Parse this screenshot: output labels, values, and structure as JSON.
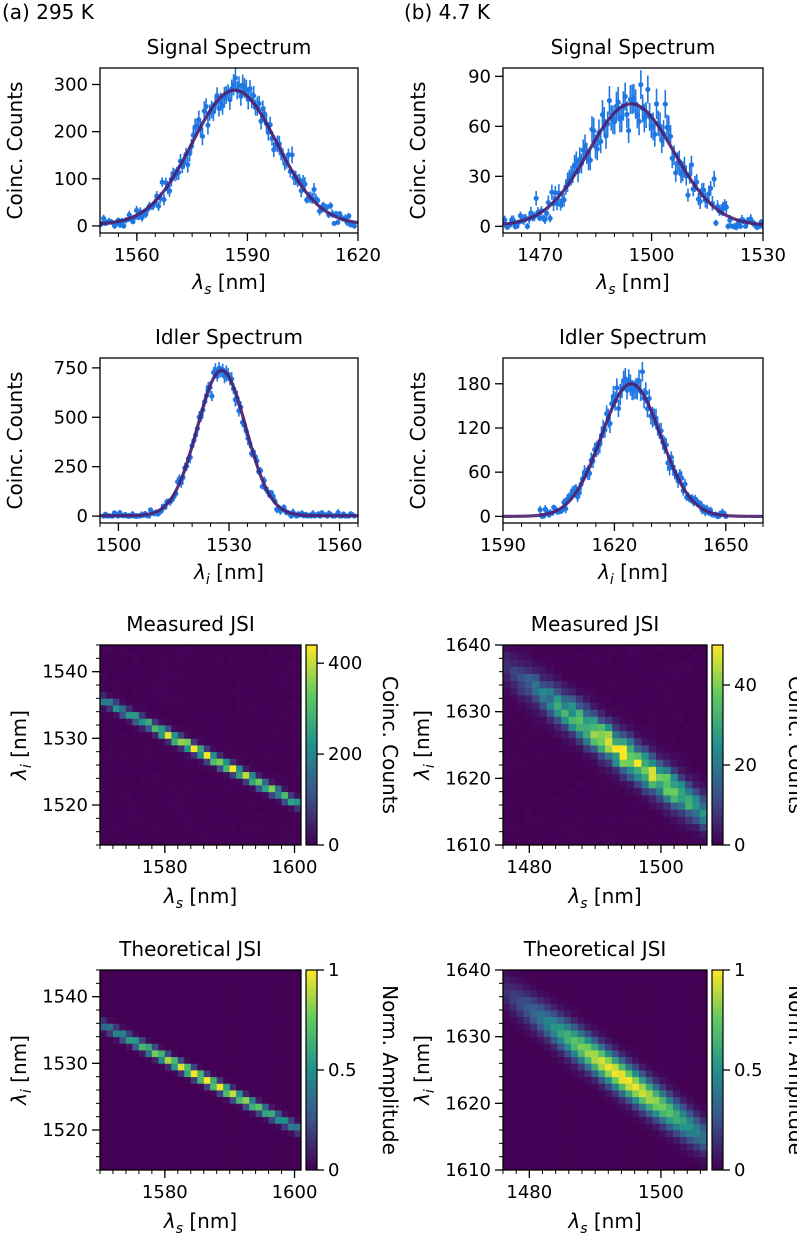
{
  "panel_labels": {
    "a": "(a) 295 K",
    "b": "(b) 4.7 K"
  },
  "colorbar_labels": {
    "counts": "Coinc. Counts",
    "amplitude": "Norm. Amplitude"
  },
  "colors": {
    "data": "#1f77e4",
    "fit": "#4b1f6f"
  },
  "chart_data": [
    {
      "id": "sig_a",
      "type": "line",
      "title": "Signal Spectrum",
      "xlabel_sym": "λ",
      "xlabel_sub": "s",
      "xlabel_unit": "[nm]",
      "ylabel": "Coinc. Counts",
      "xlim": [
        1550,
        1620
      ],
      "ylim": [
        -15,
        335
      ],
      "xticks": [
        1560,
        1590,
        1620
      ],
      "yticks": [
        0,
        100,
        200,
        300
      ],
      "fit": {
        "model": "gaussian",
        "amplitude": 285,
        "center": 1586.5,
        "sigma": 11.5,
        "offset": 3
      },
      "data_range": [
        1550,
        1619
      ],
      "n_points": 140,
      "noise_frac": 0.06
    },
    {
      "id": "sig_b",
      "type": "line",
      "title": "Signal Spectrum",
      "xlabel_sym": "λ",
      "xlabel_sub": "s",
      "xlabel_unit": "[nm]",
      "ylabel": "Coinc. Counts",
      "xlim": [
        1460,
        1530
      ],
      "ylim": [
        -4,
        95
      ],
      "xticks": [
        1470,
        1500,
        1530
      ],
      "yticks": [
        0,
        30,
        60,
        90
      ],
      "fit": {
        "model": "gaussian",
        "amplitude": 73,
        "center": 1494.5,
        "sigma": 11.5,
        "offset": 0.5
      },
      "data_range": [
        1460,
        1530
      ],
      "n_points": 150,
      "noise_frac": 0.1
    },
    {
      "id": "idl_a",
      "type": "line",
      "title": "Idler Spectrum",
      "xlabel_sym": "λ",
      "xlabel_sub": "i",
      "xlabel_unit": "[nm]",
      "ylabel": "Coinc. Counts",
      "xlim": [
        1495,
        1565
      ],
      "ylim": [
        -35,
        800
      ],
      "xticks": [
        1500,
        1530,
        1560
      ],
      "yticks": [
        0,
        250,
        500,
        750
      ],
      "fit": {
        "model": "gaussian",
        "amplitude": 735,
        "center": 1528,
        "sigma": 6.6,
        "offset": 2
      },
      "data_range": [
        1496,
        1564
      ],
      "n_points": 140,
      "noise_frac": 0.03
    },
    {
      "id": "idl_b",
      "type": "line",
      "title": "Idler Spectrum",
      "xlabel_sym": "λ",
      "xlabel_sub": "i",
      "xlabel_unit": "[nm]",
      "ylabel": "Coinc. Counts",
      "xlim": [
        1590,
        1660
      ],
      "ylim": [
        -9,
        215
      ],
      "xticks": [
        1590,
        1620,
        1650
      ],
      "yticks": [
        0,
        60,
        120,
        180
      ],
      "fit": {
        "model": "gaussian",
        "amplitude": 180,
        "center": 1624.5,
        "sigma": 8.0,
        "offset": 0
      },
      "data_range": [
        1600,
        1650
      ],
      "n_points": 110,
      "noise_frac": 0.05
    },
    {
      "id": "mjsi_a",
      "type": "heatmap",
      "title": "Measured JSI",
      "xlabel_sym": "λ",
      "xlabel_sub": "s",
      "xlabel_unit": "[nm]",
      "ylabel_sym": "λ",
      "ylabel_sub": "i",
      "ylabel_unit": "[nm]",
      "xlim": [
        1570,
        1601
      ],
      "ylim": [
        1514,
        1544
      ],
      "xticks": [
        1580,
        1600
      ],
      "yticks": [
        1520,
        1530,
        1540
      ],
      "cbar_max": 440,
      "cbar_ticks": [
        0,
        200,
        400
      ],
      "cbar": "counts",
      "ridge": {
        "x0": 1570,
        "y0": 1536,
        "slope": -0.516,
        "width": 0.55,
        "sx_center": 1587,
        "sx_sigma": 12,
        "peak": 420
      },
      "grid": [
        31,
        30
      ],
      "noisy": true
    },
    {
      "id": "mjsi_b",
      "type": "heatmap",
      "title": "Measured JSI",
      "xlabel_sym": "λ",
      "xlabel_sub": "s",
      "xlabel_unit": "[nm]",
      "ylabel_sym": "λ",
      "ylabel_sub": "i",
      "ylabel_unit": "[nm]",
      "xlim": [
        1476,
        1507
      ],
      "ylim": [
        1610,
        1640
      ],
      "xticks": [
        1480,
        1500
      ],
      "yticks": [
        1610,
        1620,
        1630,
        1640
      ],
      "cbar_max": 50,
      "cbar_ticks": [
        0,
        20,
        40
      ],
      "cbar": "counts",
      "ridge": {
        "x0": 1476,
        "y0": 1637,
        "slope": -0.72,
        "width": 1.8,
        "sx_center": 1495,
        "sx_sigma": 10,
        "peak": 46
      },
      "grid": [
        28,
        28
      ],
      "noisy": true
    },
    {
      "id": "tjsi_a",
      "type": "heatmap",
      "title": "Theoretical JSI",
      "xlabel_sym": "λ",
      "xlabel_sub": "s",
      "xlabel_unit": "[nm]",
      "ylabel_sym": "λ",
      "ylabel_sub": "i",
      "ylabel_unit": "[nm]",
      "xlim": [
        1570,
        1601
      ],
      "ylim": [
        1514,
        1544
      ],
      "xticks": [
        1580,
        1600
      ],
      "yticks": [
        1520,
        1530,
        1540
      ],
      "cbar_max": 1.0,
      "cbar_ticks": [
        0,
        0.5,
        1.0
      ],
      "cbar": "amplitude",
      "ridge": {
        "x0": 1570,
        "y0": 1536,
        "slope": -0.516,
        "width": 0.55,
        "sx_center": 1586,
        "sx_sigma": 11,
        "peak": 1.0
      },
      "grid": [
        31,
        30
      ],
      "noisy": false
    },
    {
      "id": "tjsi_b",
      "type": "heatmap",
      "title": "Theoretical JSI",
      "xlabel_sym": "λ",
      "xlabel_sub": "s",
      "xlabel_unit": "[nm]",
      "ylabel_sym": "λ",
      "ylabel_sub": "i",
      "ylabel_unit": "[nm]",
      "xlim": [
        1476,
        1507
      ],
      "ylim": [
        1610,
        1640
      ],
      "xticks": [
        1480,
        1500
      ],
      "yticks": [
        1610,
        1620,
        1630,
        1640
      ],
      "cbar_max": 1.0,
      "cbar_ticks": [
        0,
        0.5,
        1.0
      ],
      "cbar": "amplitude",
      "ridge": {
        "x0": 1476,
        "y0": 1637,
        "slope": -0.72,
        "width": 1.7,
        "sx_center": 1494,
        "sx_sigma": 9,
        "peak": 1.0
      },
      "grid": [
        30,
        30
      ],
      "noisy": false
    }
  ]
}
